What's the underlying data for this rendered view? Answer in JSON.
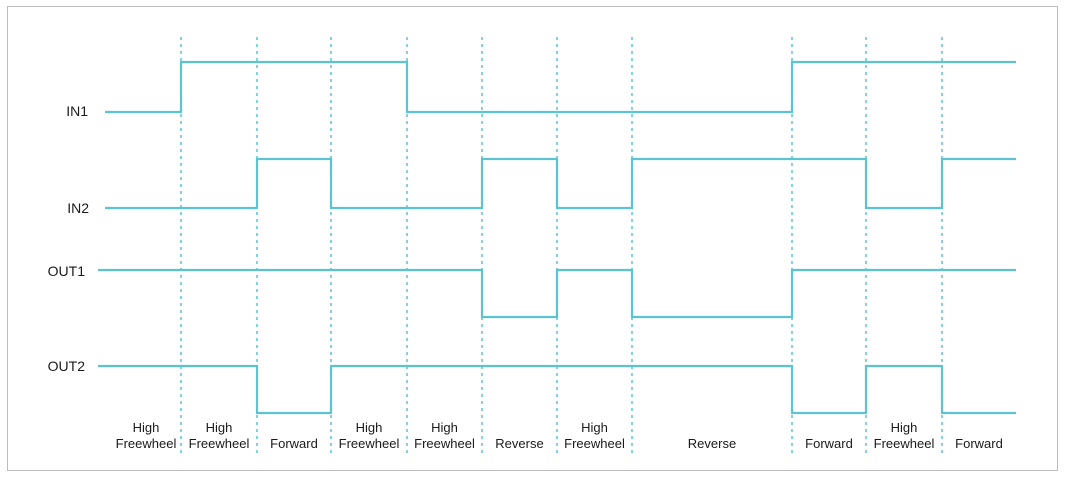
{
  "colors": {
    "wave": "#5cc3d3",
    "divider": "#5cc3d3",
    "text": "#1a1a1a",
    "border": "#bdbdbd"
  },
  "signals": [
    {
      "name": "IN1",
      "levels": [
        0,
        1,
        1,
        1,
        0,
        0,
        0,
        0,
        1,
        1,
        1
      ]
    },
    {
      "name": "IN2",
      "levels": [
        0,
        0,
        1,
        0,
        0,
        1,
        0,
        1,
        1,
        0,
        1
      ]
    },
    {
      "name": "OUT1",
      "levels": [
        1,
        1,
        1,
        1,
        1,
        0,
        1,
        0,
        1,
        1,
        1
      ]
    },
    {
      "name": "OUT2",
      "levels": [
        1,
        1,
        0,
        1,
        1,
        1,
        1,
        1,
        0,
        1,
        0
      ]
    }
  ],
  "states": [
    "High Freewheel",
    "High Freewheel",
    "Forward",
    "High Freewheel",
    "High Freewheel",
    "Reverse",
    "High Freewheel",
    "Reverse",
    "Forward",
    "High Freewheel",
    "Forward"
  ]
}
